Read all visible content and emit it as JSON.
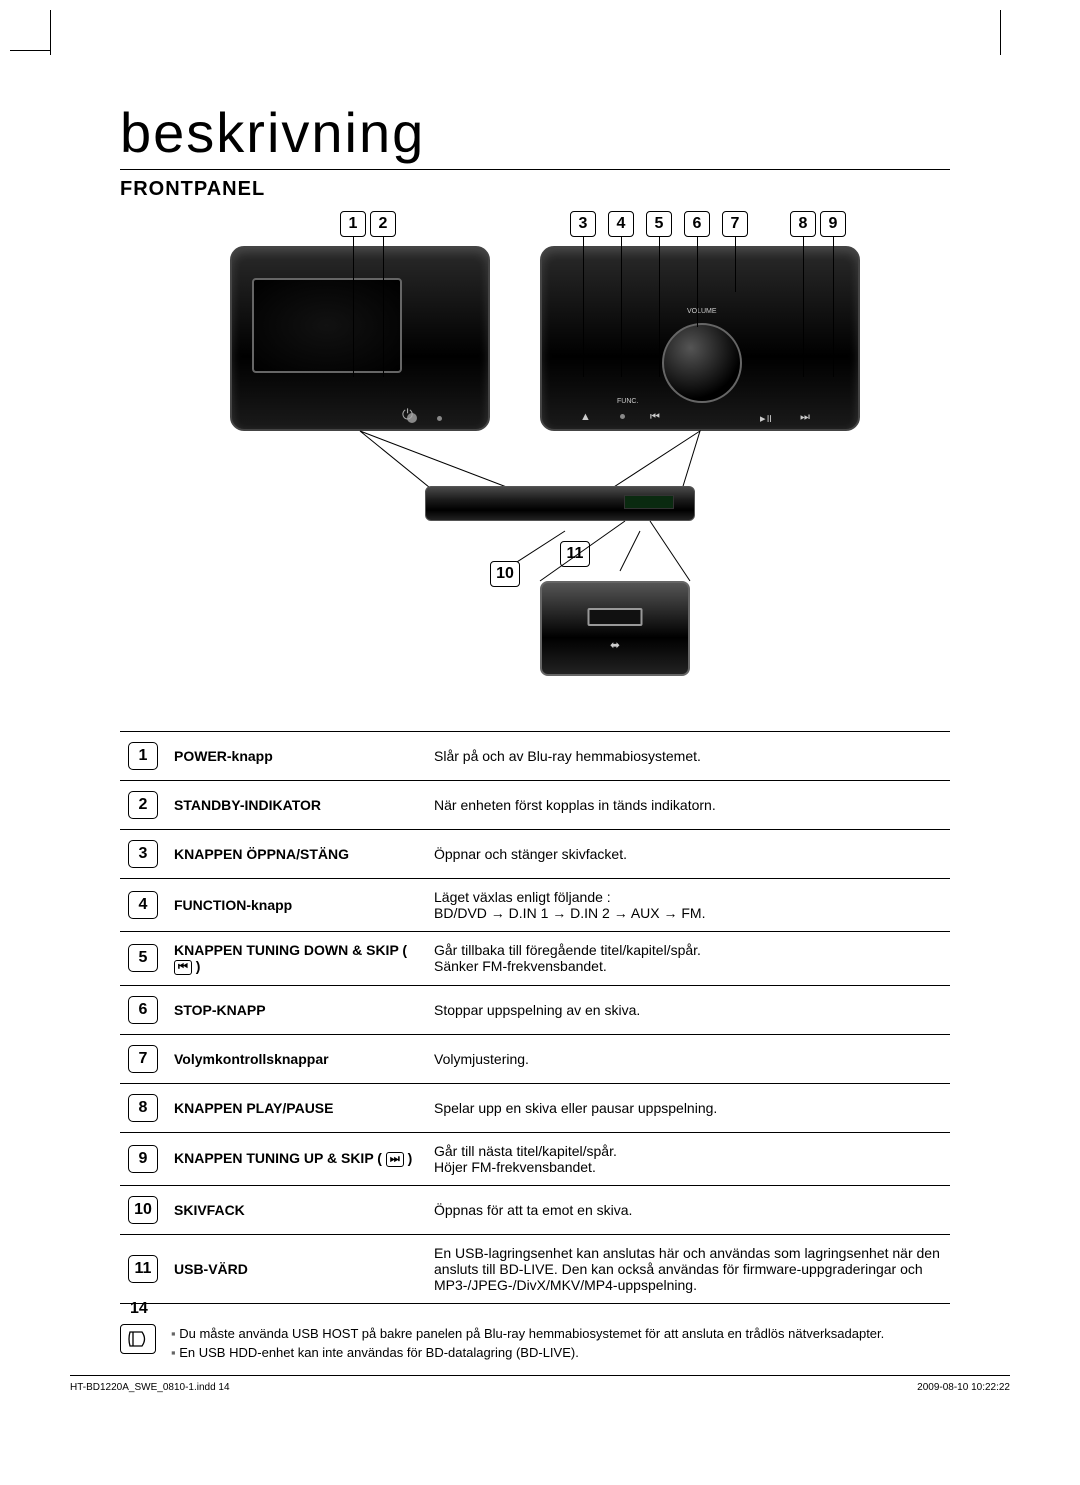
{
  "title": "beskrivning",
  "section": "FRONTPANEL",
  "callouts_top": [
    "1",
    "2",
    "3",
    "4",
    "5",
    "6",
    "7",
    "8",
    "9"
  ],
  "callouts_mid": [
    "10",
    "11"
  ],
  "panel_labels": {
    "volume": "VOLUME",
    "func": "FUNC."
  },
  "table": [
    {
      "n": "1",
      "label": "POWER-knapp",
      "desc": "Slår på och av Blu-ray hemmabiosystemet."
    },
    {
      "n": "2",
      "label": "STANDBY-INDIKATOR",
      "desc": "När enheten först kopplas in tänds indikatorn."
    },
    {
      "n": "3",
      "label": "KNAPPEN ÖPPNA/STÄNG",
      "desc": "Öppnar och stänger skivfacket."
    },
    {
      "n": "4",
      "label": "FUNCTION-knapp",
      "desc": "Läget växlas enligt följande :\nBD/DVD → D.IN 1 → D.IN 2 → AUX → FM."
    },
    {
      "n": "5",
      "label": "KNAPPEN TUNING DOWN & SKIP",
      "icon": "⏮",
      "desc": "Går tillbaka till föregående titel/kapitel/spår.\nSänker FM-frekvensbandet."
    },
    {
      "n": "6",
      "label": "STOP-KNAPP",
      "desc": "Stoppar uppspelning av en skiva."
    },
    {
      "n": "7",
      "label": "Volymkontrollsknappar",
      "desc": "Volymjustering."
    },
    {
      "n": "8",
      "label": "KNAPPEN PLAY/PAUSE",
      "desc": "Spelar upp en skiva eller pausar uppspelning."
    },
    {
      "n": "9",
      "label": "KNAPPEN TUNING UP & SKIP",
      "icon": "⏭",
      "desc": "Går till nästa titel/kapitel/spår.\nHöjer FM-frekvensbandet."
    },
    {
      "n": "10",
      "label": "SKIVFACK",
      "desc": "Öppnas för att ta emot en skiva."
    },
    {
      "n": "11",
      "label": "USB-VÄRD",
      "desc": "En USB-lagringsenhet kan anslutas här och användas som lagringsenhet när den ansluts till BD-LIVE. Den kan också användas för firmware-uppgraderingar och MP3-/JPEG-/DivX/MKV/MP4-uppspelning."
    }
  ],
  "notes": [
    "Du måste använda USB HOST på bakre panelen på Blu-ray hemmabiosystemet för att ansluta en trådlös nätverksadapter.",
    "En USB HDD-enhet kan inte användas för BD-datalagring (BD-LIVE)."
  ],
  "page_number": "14",
  "footer_left": "HT-BD1220A_SWE_0810-1.indd   14",
  "footer_right": "2009-08-10   10:22:22"
}
